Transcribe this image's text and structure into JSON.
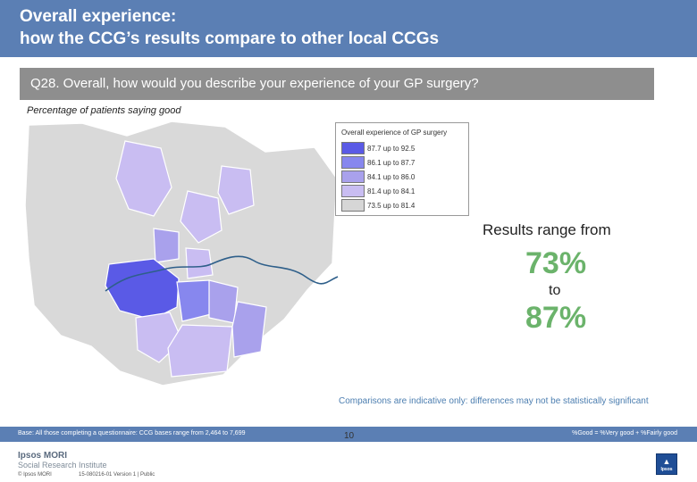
{
  "header": {
    "title_line1": "Overall experience:",
    "title_line2": "how the CCG’s results compare to other local CCGs"
  },
  "question": {
    "text": "Q28. Overall, how would you describe your experience of your GP surgery?"
  },
  "map": {
    "subtitle": "Percentage of patients saying good",
    "legend": {
      "title": "Overall experience of GP surgery",
      "items": [
        {
          "label": "87.7 up to 92.5",
          "color": "#5a5ae6"
        },
        {
          "label": "86.1 up to 87.7",
          "color": "#8787ee"
        },
        {
          "label": "84.1 up to 86.0",
          "color": "#a9a1ec"
        },
        {
          "label": "81.4 up to 84.1",
          "color": "#c9bdf2"
        },
        {
          "label": "73.5 up to 81.4",
          "color": "#d6d6d6"
        }
      ]
    }
  },
  "results": {
    "range_label": "Results range from",
    "min": "73%",
    "to": "to",
    "max": "87%",
    "highlight_color": "#6bb36b"
  },
  "caveat": "Comparisons are indicative only: differences may not be statistically significant",
  "footer": {
    "base": "Base: All those completing a questionnaire: CCG bases range from 2,464 to 7,699",
    "definition": "%Good = %Very good + %Fairly good",
    "page": "10",
    "logo_main": "Ipsos MORI",
    "logo_sub": "Social Research Institute",
    "copyright": "© Ipsos MORI",
    "job_ref": "15-080216-01 Version 1 | Public",
    "corner_logo_text": "Ipsos"
  },
  "colors": {
    "header_blue": "#5b7fb4",
    "question_grey": "#8e8e8e",
    "caveat_blue": "#4c7eb0",
    "thames": "#2e5f8a"
  }
}
